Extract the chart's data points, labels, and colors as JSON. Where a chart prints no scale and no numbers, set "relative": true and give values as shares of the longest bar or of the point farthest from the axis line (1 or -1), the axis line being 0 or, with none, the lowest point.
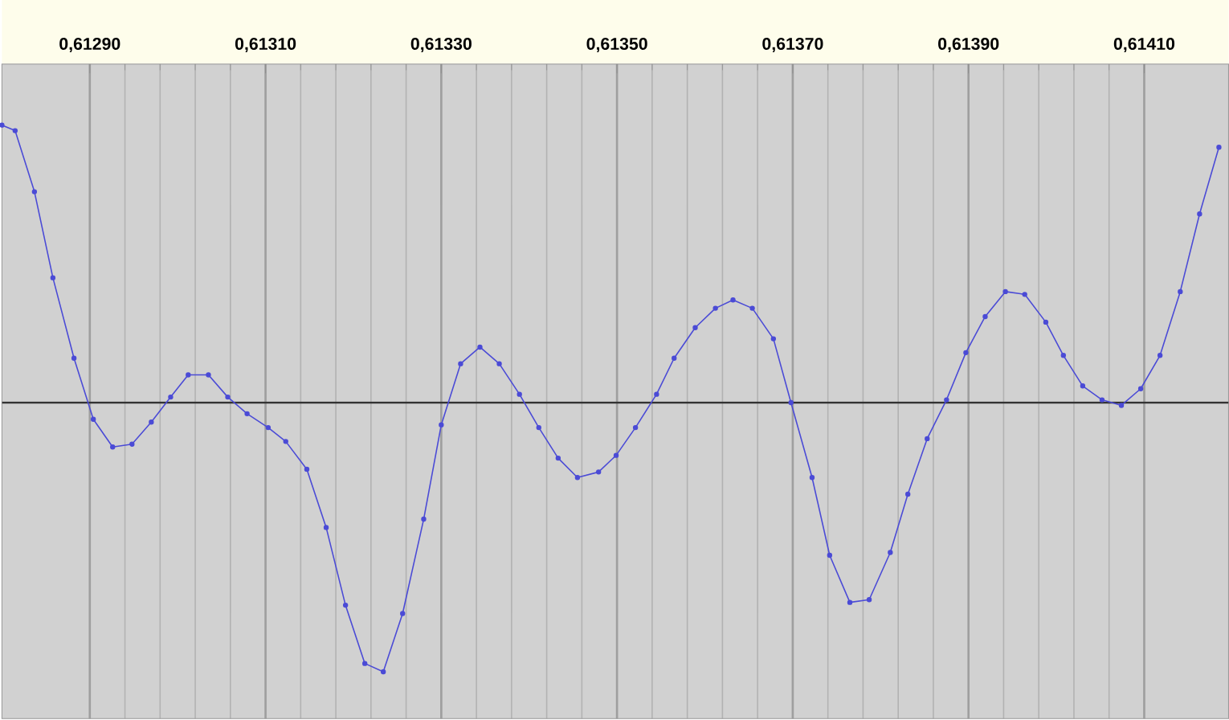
{
  "chart_data": {
    "type": "line",
    "relative": true,
    "color": "#4b4bd6",
    "marker": "circle",
    "grid": "x",
    "xlim": [
      0.6128,
      0.614196
    ],
    "xticks": [
      {
        "value": 0.6129,
        "label": "0,61290"
      },
      {
        "value": 0.6131,
        "label": "0,61310"
      },
      {
        "value": 0.6133,
        "label": "0,61330"
      },
      {
        "value": 0.6135,
        "label": "0,61350"
      },
      {
        "value": 0.6137,
        "label": "0,61370"
      },
      {
        "value": 0.6139,
        "label": "0,61390"
      },
      {
        "value": 0.6141,
        "label": "0,61410"
      }
    ],
    "x": [
      0.6128,
      0.612815,
      0.612837,
      0.612858,
      0.612882,
      0.612904,
      0.612926,
      0.612948,
      0.61297,
      0.612992,
      0.613012,
      0.613035,
      0.613057,
      0.613079,
      0.613103,
      0.613123,
      0.613147,
      0.613169,
      0.613191,
      0.613213,
      0.613234,
      0.613256,
      0.61328,
      0.6133,
      0.613322,
      0.613344,
      0.613366,
      0.613389,
      0.613411,
      0.613433,
      0.613455,
      0.613479,
      0.613499,
      0.613521,
      0.613545,
      0.613565,
      0.613589,
      0.613612,
      0.613632,
      0.613654,
      0.613678,
      0.613698,
      0.613722,
      0.613742,
      0.613765,
      0.613787,
      0.613811,
      0.613831,
      0.613853,
      0.613875,
      0.613897,
      0.613919,
      0.613942,
      0.613964,
      0.613988,
      0.614008,
      0.61403,
      0.614052,
      0.614074,
      0.614096,
      0.614118,
      0.614141,
      0.614163,
      0.614185
    ],
    "values": [
      1,
      0.98,
      0.76,
      0.45,
      0.16,
      -0.06,
      -0.16,
      -0.15,
      -0.07,
      0.02,
      0.1,
      0.1,
      0.02,
      -0.04,
      -0.09,
      -0.14,
      -0.24,
      -0.45,
      -0.73,
      -0.94,
      -0.97,
      -0.76,
      -0.42,
      -0.08,
      0.14,
      0.2,
      0.14,
      0.03,
      -0.09,
      -0.2,
      -0.27,
      -0.25,
      -0.19,
      -0.09,
      0.03,
      0.16,
      0.27,
      0.34,
      0.37,
      0.34,
      0.23,
      0,
      -0.27,
      -0.55,
      -0.72,
      -0.71,
      -0.54,
      -0.33,
      -0.13,
      0.01,
      0.18,
      0.31,
      0.4,
      0.39,
      0.29,
      0.17,
      0.06,
      0.01,
      -0.01,
      0.05,
      0.17,
      0.4,
      0.68,
      0.92
    ]
  }
}
